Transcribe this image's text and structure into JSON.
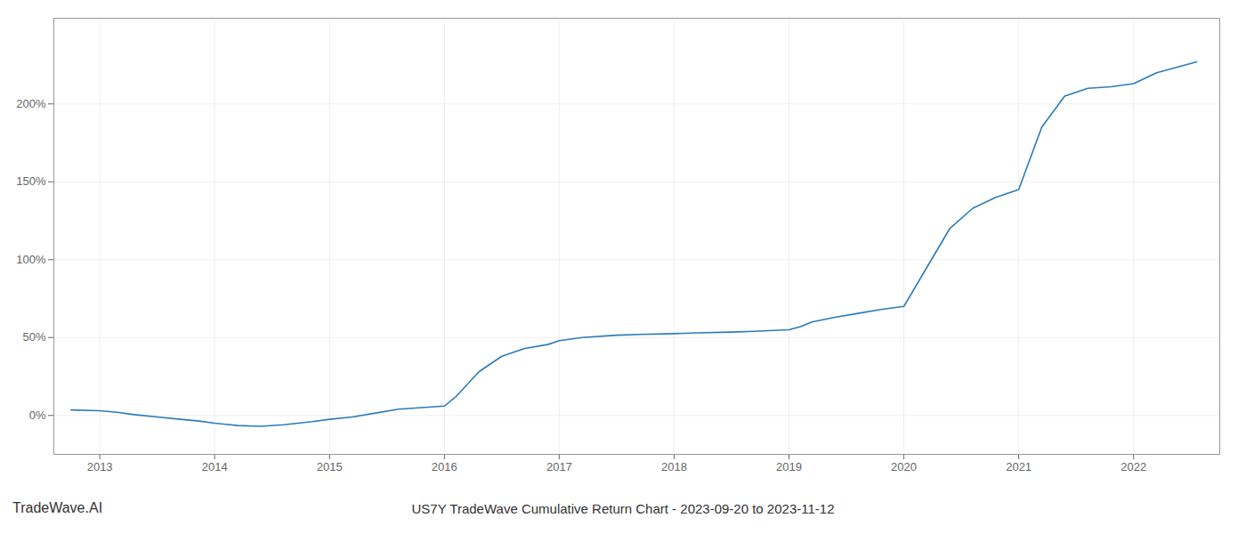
{
  "chart_data": {
    "type": "line",
    "title": "US7Y TradeWave Cumulative Return Chart - 2023-09-20 to 2023-11-12",
    "watermark": "TradeWave.AI",
    "color": "#2b7bba",
    "x": [
      2012.75,
      2013.0,
      2013.15,
      2013.3,
      2013.5,
      2013.7,
      2013.85,
      2014.0,
      2014.2,
      2014.4,
      2014.6,
      2014.85,
      2015.0,
      2015.2,
      2015.4,
      2015.6,
      2015.8,
      2016.0,
      2016.1,
      2016.2,
      2016.3,
      2016.5,
      2016.7,
      2016.9,
      2017.0,
      2017.2,
      2017.5,
      2017.7,
      2018.0,
      2018.2,
      2018.5,
      2018.7,
      2019.0,
      2019.1,
      2019.2,
      2019.4,
      2019.6,
      2019.8,
      2020.0,
      2020.2,
      2020.4,
      2020.6,
      2020.8,
      2021.0,
      2021.1,
      2021.2,
      2021.4,
      2021.6,
      2021.8,
      2022.0,
      2022.2,
      2022.55
    ],
    "values": [
      3.5,
      3.0,
      2.0,
      0.5,
      -1.0,
      -2.5,
      -3.5,
      -5.0,
      -6.5,
      -7.0,
      -6.0,
      -4.0,
      -2.5,
      -1.0,
      1.5,
      4.0,
      5.0,
      6.0,
      12.0,
      20.0,
      28.0,
      38.0,
      43.0,
      45.5,
      48.0,
      50.0,
      51.5,
      52.0,
      52.5,
      53.0,
      53.5,
      54.0,
      55.0,
      57.0,
      60.0,
      63.0,
      65.5,
      68.0,
      70.0,
      95.0,
      120.0,
      133.0,
      140.0,
      145.0,
      165.0,
      185.0,
      205.0,
      210.0,
      211.0,
      213.0,
      220.0,
      227.0
    ],
    "xlim": [
      2012.6,
      2022.75
    ],
    "xticks": [
      2013,
      2014,
      2015,
      2016,
      2017,
      2018,
      2019,
      2020,
      2021,
      2022
    ],
    "ylim": [
      -25,
      255
    ],
    "yticks": [
      {
        "value": 0,
        "label": "0%"
      },
      {
        "value": 50,
        "label": "50%"
      },
      {
        "value": 100,
        "label": "100%"
      },
      {
        "value": 150,
        "label": "150%"
      },
      {
        "value": 200,
        "label": "200%"
      }
    ],
    "grid": true
  }
}
